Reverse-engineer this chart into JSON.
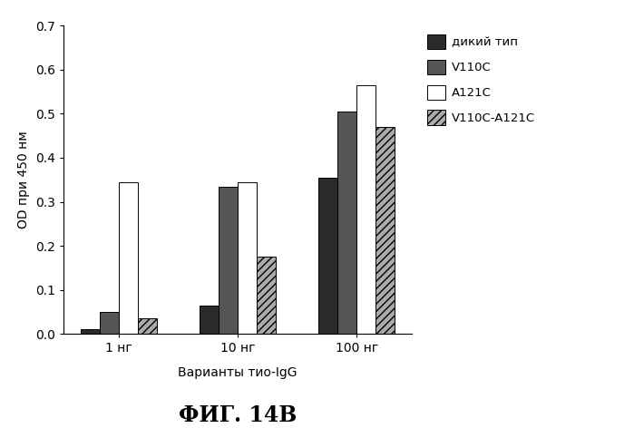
{
  "categories": [
    "1 нг",
    "10 нг",
    "100 нг"
  ],
  "series": {
    "дикий тип": [
      0.01,
      0.065,
      0.355
    ],
    "V110C": [
      0.05,
      0.335,
      0.505
    ],
    "A121C": [
      0.345,
      0.345,
      0.565
    ],
    "V110C-A121C": [
      0.035,
      0.175,
      0.47
    ]
  },
  "legend_labels": [
    "дикий тип",
    "V110C",
    "A121C",
    "V110C-A121C"
  ],
  "ylabel": "OD при 450 нм",
  "xlabel": "Варианты тио-IgG",
  "ylim": [
    0,
    0.7
  ],
  "yticks": [
    0.0,
    0.1,
    0.2,
    0.3,
    0.4,
    0.5,
    0.6,
    0.7
  ],
  "title": "ФИГ. 14В",
  "bar_width": 0.12,
  "background_color": "#ffffff"
}
